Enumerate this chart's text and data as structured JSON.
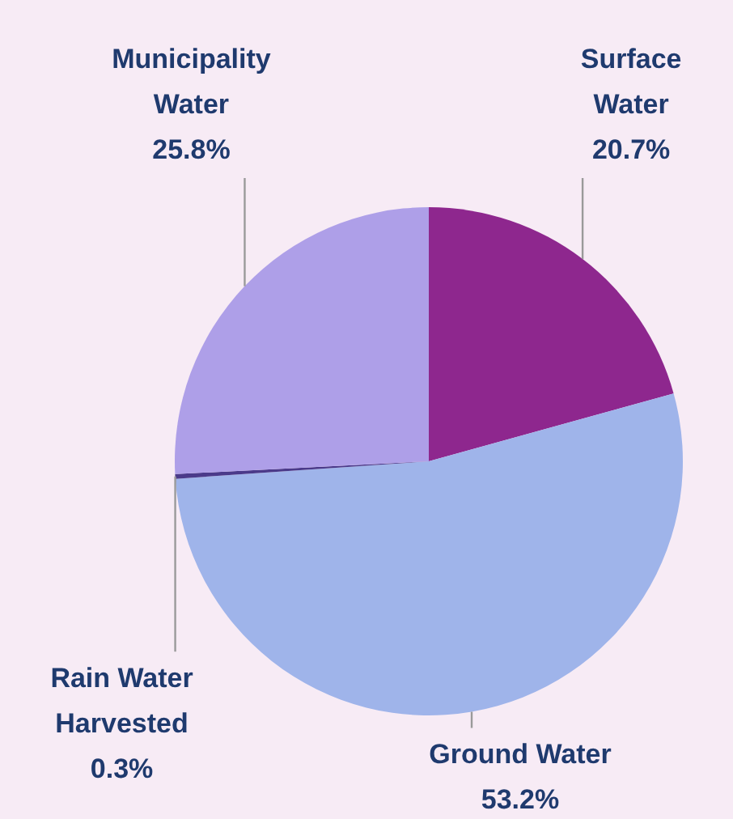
{
  "chart_data": {
    "type": "pie",
    "categories": [
      "Surface Water",
      "Ground Water",
      "Rain Water Harvested",
      "Municipality Water"
    ],
    "values": [
      20.7,
      53.2,
      0.3,
      25.8
    ],
    "colors": [
      "#8e278e",
      "#9fb4ea",
      "#4b3a8a",
      "#ae9fe8"
    ],
    "value_labels": [
      "20.7%",
      "53.2%",
      "0.3%",
      "25.8%"
    ]
  }
}
